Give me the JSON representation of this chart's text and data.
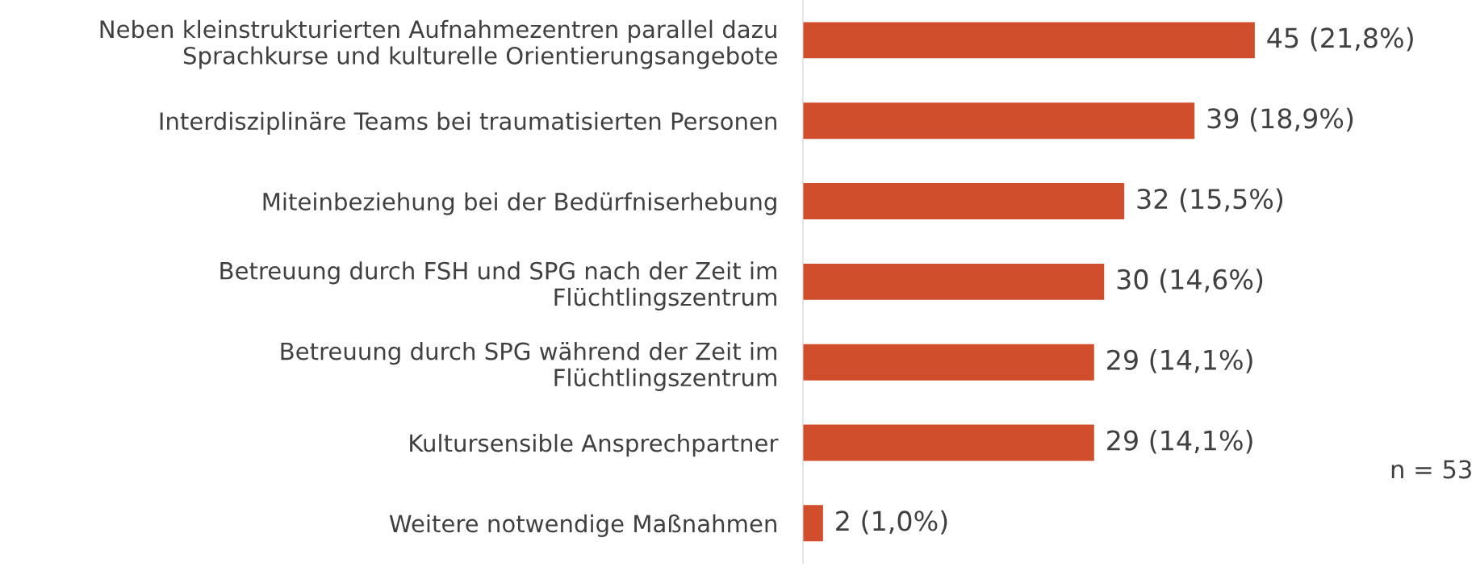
{
  "chart_data": {
    "type": "bar",
    "orientation": "horizontal",
    "categories": [
      "Neben kleinstrukturierten Aufnahmezentren parallel dazu Sprachkurse und kulturelle Orientierungsangebote",
      "Interdisziplinäre Teams bei traumatisierten Personen",
      "Miteinbeziehung bei der Bedürfniserhebung",
      "Betreuung durch FSH und SPG nach der Zeit im Flüchtlingszentrum",
      "Betreuung durch SPG während der Zeit im Flüchtlingszentrum",
      "Kultursensible Ansprechpartner",
      "Weitere notwendige Maßnahmen"
    ],
    "values": [
      45,
      39,
      32,
      30,
      29,
      29,
      2
    ],
    "value_labels": [
      "45 (21,8%)",
      "39 (18,9%)",
      "32 (15,5%)",
      "30 (14,6%)",
      "29 (14,1%)",
      "29 (14,1%)",
      "2 (1,0%)"
    ],
    "color": "#d04e2b",
    "annotations": [
      "n = 53"
    ],
    "tick_labels": "y",
    "grid": false,
    "legend": false
  }
}
